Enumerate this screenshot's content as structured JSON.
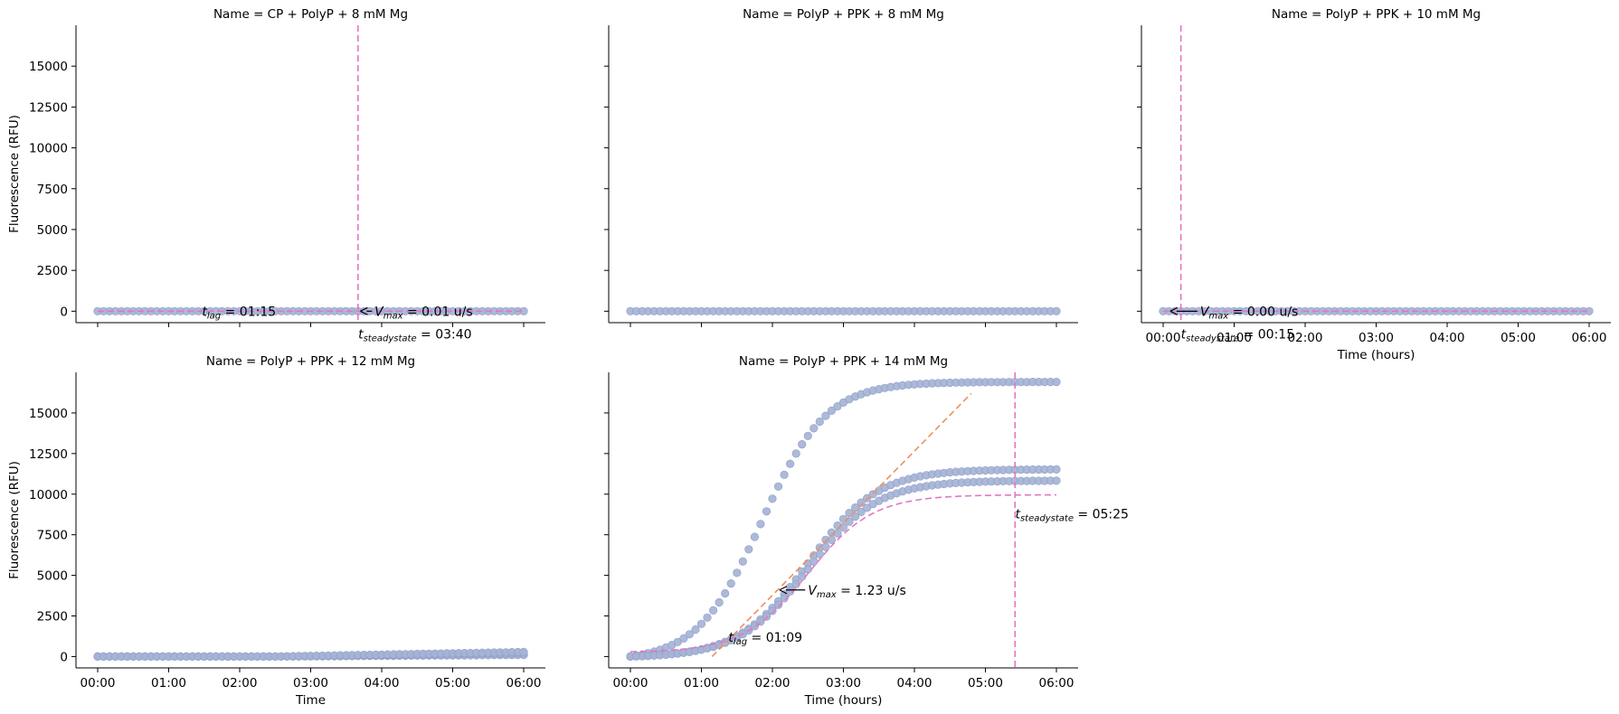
{
  "figure": {
    "ylabel": "Fluorescence (RFU)"
  },
  "chart_data": [
    {
      "type": "scatter",
      "title": "Name = CP + PolyP + 8 mM Mg",
      "xlabel": "",
      "ylabel": "Fluorescence (RFU)",
      "xlim": [
        0,
        6
      ],
      "ylim": [
        -700,
        17500
      ],
      "xticks": [
        0,
        1,
        2,
        3,
        4,
        5,
        6
      ],
      "xticklabels": [],
      "yticks": [
        0,
        2500,
        5000,
        7500,
        10000,
        12500,
        15000
      ],
      "yticklabels": [
        "0",
        "2500",
        "5000",
        "7500",
        "10000",
        "12500",
        "15000"
      ],
      "series": [
        {
          "kind": "flat",
          "value": 0
        }
      ],
      "fits": [
        {
          "kind": "line",
          "x": [
            0,
            6
          ],
          "y": [
            0,
            0
          ],
          "color": "#f28e5b"
        },
        {
          "kind": "line",
          "x": [
            0,
            6
          ],
          "y": [
            0,
            0
          ],
          "color": "#e377c2"
        }
      ],
      "vlines": [
        3.667
      ],
      "annotations": [
        {
          "sym": "t",
          "sub": "lag",
          "value": " =  01:15",
          "x": 1.47,
          "y": 0
        },
        {
          "sym": "V",
          "sub": "max",
          "value": " =  0.01 u/s",
          "x": 3.9,
          "y": 0,
          "arrow_to": [
            3.7,
            0
          ]
        },
        {
          "sym": "t",
          "sub": "steadystate",
          "value": " =  03:40",
          "x": 3.67,
          "y": -1400
        }
      ]
    },
    {
      "type": "scatter",
      "title": "Name = PolyP + PPK + 8 mM Mg",
      "xlabel": "",
      "ylabel": "",
      "xlim": [
        0,
        6
      ],
      "ylim": [
        -700,
        17500
      ],
      "xticks": [
        0,
        1,
        2,
        3,
        4,
        5,
        6
      ],
      "xticklabels": [],
      "yticks": [
        0,
        2500,
        5000,
        7500,
        10000,
        12500,
        15000
      ],
      "yticklabels": [],
      "series": [
        {
          "kind": "flat",
          "value": 0
        }
      ],
      "fits": [],
      "vlines": [],
      "annotations": []
    },
    {
      "type": "scatter",
      "title": "Name = PolyP + PPK + 10 mM Mg",
      "xlabel": "Time (hours)",
      "ylabel": "",
      "xlim": [
        0,
        6
      ],
      "ylim": [
        -700,
        17500
      ],
      "xticks": [
        0,
        1,
        2,
        3,
        4,
        5,
        6
      ],
      "xticklabels": [
        "00:00",
        "01:00",
        "02:00",
        "03:00",
        "04:00",
        "05:00",
        "06:00"
      ],
      "yticks": [
        0,
        2500,
        5000,
        7500,
        10000,
        12500,
        15000
      ],
      "yticklabels": [],
      "series": [
        {
          "kind": "flat",
          "value": 0
        }
      ],
      "fits": [
        {
          "kind": "line",
          "x": [
            0,
            6
          ],
          "y": [
            0,
            0
          ],
          "color": "#f28e5b"
        },
        {
          "kind": "line",
          "x": [
            0,
            6
          ],
          "y": [
            0,
            0
          ],
          "color": "#e377c2"
        }
      ],
      "vlines": [
        0.25
      ],
      "annotations": [
        {
          "sym": "V",
          "sub": "max",
          "value": " =  0.00 u/s",
          "x": 0.52,
          "y": 0,
          "arrow_to": [
            0.1,
            0
          ]
        },
        {
          "sym": "t",
          "sub": "steadystate",
          "value": " =  00:15",
          "x": 0.25,
          "y": -1400
        }
      ]
    },
    {
      "type": "scatter",
      "title": "Name = PolyP + PPK + 12 mM Mg",
      "xlabel": "Time",
      "ylabel": "Fluorescence (RFU)",
      "xlim": [
        0,
        6
      ],
      "ylim": [
        -700,
        17500
      ],
      "xticks": [
        0,
        1,
        2,
        3,
        4,
        5,
        6
      ],
      "xticklabels": [
        "00:00",
        "01:00",
        "02:00",
        "03:00",
        "04:00",
        "05:00",
        "06:00"
      ],
      "yticks": [
        0,
        2500,
        5000,
        7500,
        10000,
        12500,
        15000
      ],
      "yticklabels": [
        "0",
        "2500",
        "5000",
        "7500",
        "10000",
        "12500",
        "15000"
      ],
      "series": [
        {
          "kind": "ramp",
          "start": 0,
          "end": 100,
          "rise_from": 2.5
        },
        {
          "kind": "ramp",
          "start": 0,
          "end": 200,
          "rise_from": 2.5
        },
        {
          "kind": "ramp",
          "start": 0,
          "end": 280,
          "rise_from": 2.5
        }
      ],
      "fits": [],
      "vlines": [],
      "annotations": []
    },
    {
      "type": "scatter",
      "title": "Name = PolyP + PPK + 14 mM Mg",
      "xlabel": "Time (hours)",
      "ylabel": "",
      "xlim": [
        0,
        6
      ],
      "ylim": [
        -700,
        17500
      ],
      "xticks": [
        0,
        1,
        2,
        3,
        4,
        5,
        6
      ],
      "xticklabels": [
        "00:00",
        "01:00",
        "02:00",
        "03:00",
        "04:00",
        "05:00",
        "06:00"
      ],
      "yticks": [
        0,
        2500,
        5000,
        7500,
        10000,
        12500,
        15000
      ],
      "yticklabels": [],
      "series": [
        {
          "kind": "sigmoid",
          "max": 17200,
          "mid": 1.85,
          "k": 2.2,
          "base": 0
        },
        {
          "kind": "sigmoid",
          "max": 11600,
          "mid": 2.5,
          "k": 2.05,
          "base": 0
        },
        {
          "kind": "sigmoid",
          "max": 10900,
          "mid": 2.5,
          "k": 2.05,
          "base": 0
        }
      ],
      "fits": [
        {
          "kind": "line",
          "x": [
            1.15,
            4.8
          ],
          "y": [
            0,
            16200
          ],
          "color": "#f28e5b"
        },
        {
          "kind": "sigmoid",
          "max": 9700,
          "mid": 2.5,
          "k": 2.2,
          "base": 0,
          "x0": 0,
          "x1": 6,
          "color": "#e377c2"
        }
      ],
      "vlines": [
        5.417
      ],
      "annotations": [
        {
          "sym": "t",
          "sub": "lag",
          "value": " =  01:09",
          "x": 1.38,
          "y": 1200
        },
        {
          "sym": "V",
          "sub": "max",
          "value": " =  1.23 u/s",
          "x": 2.5,
          "y": 4100,
          "arrow_to": [
            2.1,
            4100
          ]
        },
        {
          "sym": "t",
          "sub": "steadystate",
          "value": " =  05:25",
          "x": 5.42,
          "y": 8800
        }
      ]
    }
  ]
}
